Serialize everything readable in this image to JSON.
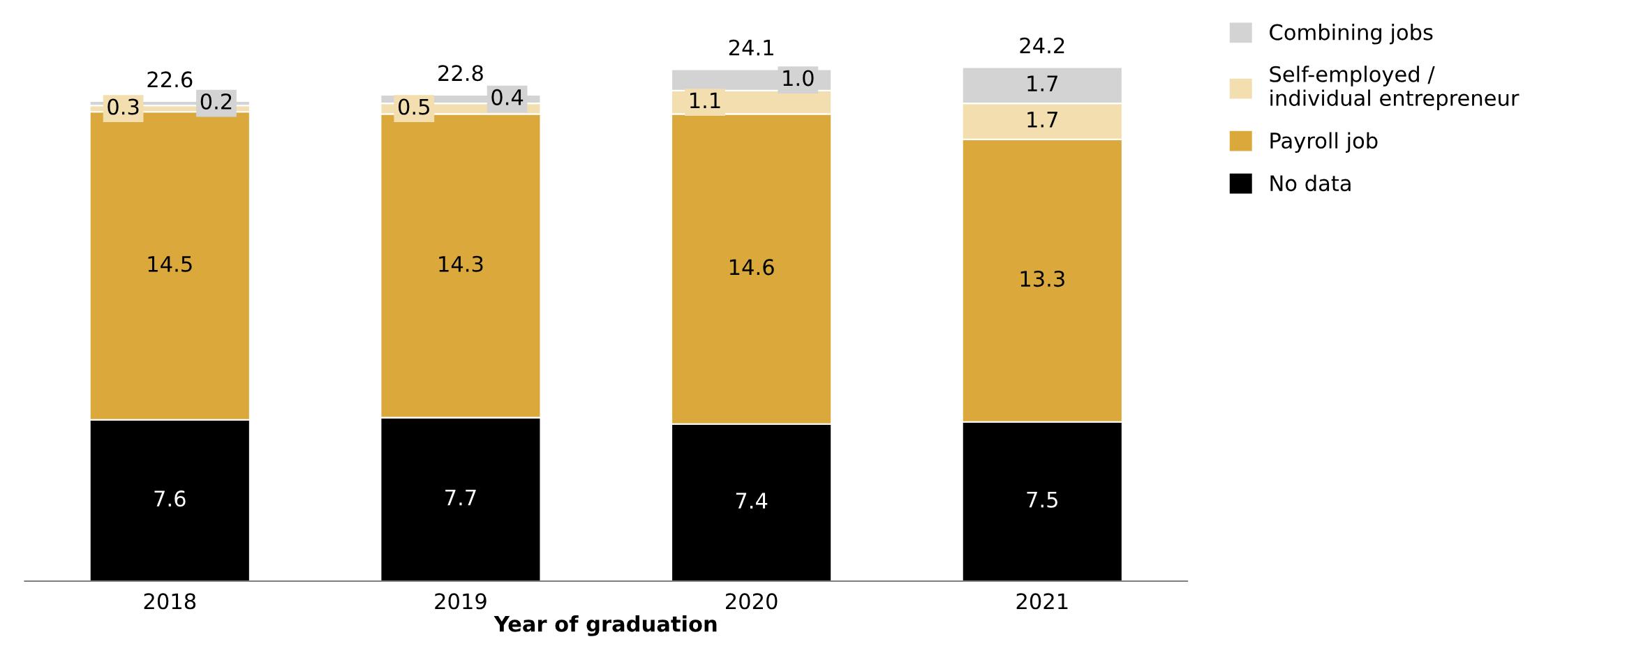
{
  "chart_data": {
    "type": "bar",
    "stacked": true,
    "xlabel": "Year of graduation",
    "categories": [
      "2018",
      "2019",
      "2020",
      "2021"
    ],
    "series": [
      {
        "name": "No data",
        "color": "#000000",
        "values": [
          7.6,
          7.7,
          7.4,
          7.5
        ]
      },
      {
        "name": "Payroll job",
        "color": "#dba83c",
        "values": [
          14.5,
          14.3,
          14.6,
          13.3
        ]
      },
      {
        "name": "Self-employed / individual entrepreneur",
        "color": "#f3deb0",
        "values": [
          0.3,
          0.5,
          1.1,
          1.7
        ]
      },
      {
        "name": "Combining jobs",
        "color": "#d3d3d3",
        "values": [
          0.2,
          0.4,
          1.0,
          1.7
        ],
        "value_labels": [
          "0.2",
          "0.4",
          "1.0",
          "1.7"
        ]
      }
    ],
    "data_labels": true,
    "totals": [
      "22.6",
      "22.8",
      "24.1",
      "24.2"
    ],
    "tick_labels": "x",
    "grid": false,
    "legend": "top right"
  }
}
